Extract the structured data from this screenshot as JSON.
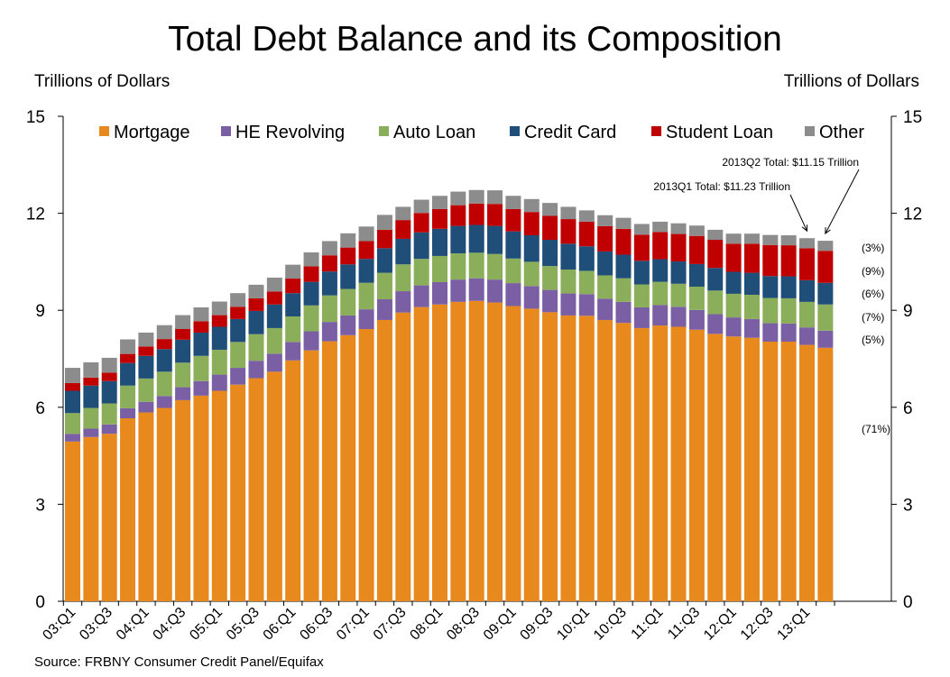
{
  "chart_data": {
    "type": "bar",
    "stacked": true,
    "title": "Total Debt Balance and its Composition",
    "ylabel_left": "Trillions of Dollars",
    "ylabel_right": "Trillions of Dollars",
    "ylim": [
      0,
      15
    ],
    "yticks": [
      0,
      3,
      6,
      9,
      12,
      15
    ],
    "grid": false,
    "legend_position": "top",
    "source": "Source: FRBNY Consumer Credit Panel/Equifax",
    "xtick_labels": [
      "03:Q1",
      "03:Q3",
      "04:Q1",
      "04:Q3",
      "05:Q1",
      "05:Q3",
      "06:Q1",
      "06:Q3",
      "07:Q1",
      "07:Q3",
      "08:Q1",
      "08:Q3",
      "09:Q1",
      "09:Q3",
      "10:Q1",
      "10:Q3",
      "11:Q1",
      "11:Q3",
      "12:Q1",
      "12:Q3",
      "13:Q1"
    ],
    "categories": [
      "03:Q1",
      "03:Q2",
      "03:Q3",
      "03:Q4",
      "04:Q1",
      "04:Q2",
      "04:Q3",
      "04:Q4",
      "05:Q1",
      "05:Q2",
      "05:Q3",
      "05:Q4",
      "06:Q1",
      "06:Q2",
      "06:Q3",
      "06:Q4",
      "07:Q1",
      "07:Q2",
      "07:Q3",
      "07:Q4",
      "08:Q1",
      "08:Q2",
      "08:Q3",
      "08:Q4",
      "09:Q1",
      "09:Q2",
      "09:Q3",
      "09:Q4",
      "10:Q1",
      "10:Q2",
      "10:Q3",
      "10:Q4",
      "11:Q1",
      "11:Q2",
      "11:Q3",
      "11:Q4",
      "12:Q1",
      "12:Q2",
      "12:Q3",
      "12:Q4",
      "13:Q1",
      "13:Q2"
    ],
    "series": [
      {
        "name": "Mortgage",
        "color": "#E8891E",
        "values": [
          4.94,
          5.08,
          5.18,
          5.66,
          5.84,
          5.98,
          6.22,
          6.36,
          6.51,
          6.7,
          6.9,
          7.1,
          7.45,
          7.76,
          8.04,
          8.23,
          8.42,
          8.7,
          8.93,
          9.1,
          9.18,
          9.26,
          9.29,
          9.24,
          9.13,
          9.05,
          8.94,
          8.84,
          8.83,
          8.7,
          8.61,
          8.45,
          8.53,
          8.49,
          8.4,
          8.27,
          8.19,
          8.15,
          8.03,
          8.03,
          7.93,
          7.84
        ]
      },
      {
        "name": "HE Revolving",
        "color": "#7B5FA5",
        "values": [
          0.24,
          0.26,
          0.29,
          0.31,
          0.33,
          0.37,
          0.4,
          0.45,
          0.5,
          0.52,
          0.54,
          0.56,
          0.57,
          0.59,
          0.6,
          0.61,
          0.61,
          0.64,
          0.66,
          0.67,
          0.69,
          0.69,
          0.7,
          0.71,
          0.71,
          0.7,
          0.69,
          0.68,
          0.67,
          0.66,
          0.65,
          0.64,
          0.63,
          0.62,
          0.61,
          0.61,
          0.59,
          0.58,
          0.57,
          0.56,
          0.54,
          0.53
        ]
      },
      {
        "name": "Auto Loan",
        "color": "#8BAE5A",
        "values": [
          0.64,
          0.64,
          0.65,
          0.7,
          0.72,
          0.75,
          0.76,
          0.78,
          0.77,
          0.8,
          0.82,
          0.79,
          0.79,
          0.8,
          0.82,
          0.82,
          0.82,
          0.82,
          0.83,
          0.82,
          0.81,
          0.81,
          0.79,
          0.79,
          0.76,
          0.75,
          0.74,
          0.74,
          0.72,
          0.72,
          0.73,
          0.71,
          0.72,
          0.71,
          0.72,
          0.73,
          0.73,
          0.75,
          0.78,
          0.78,
          0.79,
          0.81
        ]
      },
      {
        "name": "Credit Card",
        "color": "#1F4E79",
        "values": [
          0.69,
          0.69,
          0.69,
          0.7,
          0.7,
          0.7,
          0.71,
          0.72,
          0.71,
          0.71,
          0.72,
          0.73,
          0.72,
          0.73,
          0.74,
          0.76,
          0.74,
          0.76,
          0.79,
          0.82,
          0.84,
          0.85,
          0.86,
          0.87,
          0.84,
          0.82,
          0.81,
          0.8,
          0.76,
          0.74,
          0.73,
          0.73,
          0.7,
          0.69,
          0.7,
          0.7,
          0.68,
          0.68,
          0.68,
          0.68,
          0.67,
          0.67
        ]
      },
      {
        "name": "Student Loan",
        "color": "#C00000",
        "values": [
          0.24,
          0.25,
          0.26,
          0.28,
          0.29,
          0.31,
          0.33,
          0.35,
          0.36,
          0.38,
          0.39,
          0.4,
          0.45,
          0.48,
          0.5,
          0.52,
          0.55,
          0.57,
          0.58,
          0.6,
          0.61,
          0.64,
          0.66,
          0.68,
          0.69,
          0.72,
          0.74,
          0.76,
          0.76,
          0.78,
          0.8,
          0.81,
          0.84,
          0.85,
          0.87,
          0.87,
          0.87,
          0.9,
          0.96,
          0.96,
          0.99,
          0.99
        ]
      },
      {
        "name": "Other",
        "color": "#8C8C8C",
        "values": [
          0.47,
          0.47,
          0.46,
          0.45,
          0.43,
          0.43,
          0.43,
          0.43,
          0.42,
          0.42,
          0.42,
          0.43,
          0.43,
          0.43,
          0.44,
          0.44,
          0.45,
          0.46,
          0.41,
          0.41,
          0.41,
          0.42,
          0.42,
          0.42,
          0.41,
          0.4,
          0.4,
          0.38,
          0.35,
          0.34,
          0.34,
          0.33,
          0.32,
          0.33,
          0.32,
          0.31,
          0.31,
          0.31,
          0.31,
          0.31,
          0.31,
          0.31
        ]
      }
    ],
    "annotations": [
      {
        "text": "2013Q2 Total: $11.15 Trillion",
        "category": "13:Q2"
      },
      {
        "text": "2013Q1 Total: $11.23 Trillion",
        "category": "13:Q1"
      }
    ],
    "share_labels": [
      {
        "text": "(3%)",
        "series": "Other"
      },
      {
        "text": "(9%)",
        "series": "Student Loan"
      },
      {
        "text": "(6%)",
        "series": "Credit Card"
      },
      {
        "text": "(7%)",
        "series": "Auto Loan"
      },
      {
        "text": "(5%)",
        "series": "HE Revolving"
      },
      {
        "text": "(71%)",
        "series": "Mortgage"
      }
    ]
  }
}
